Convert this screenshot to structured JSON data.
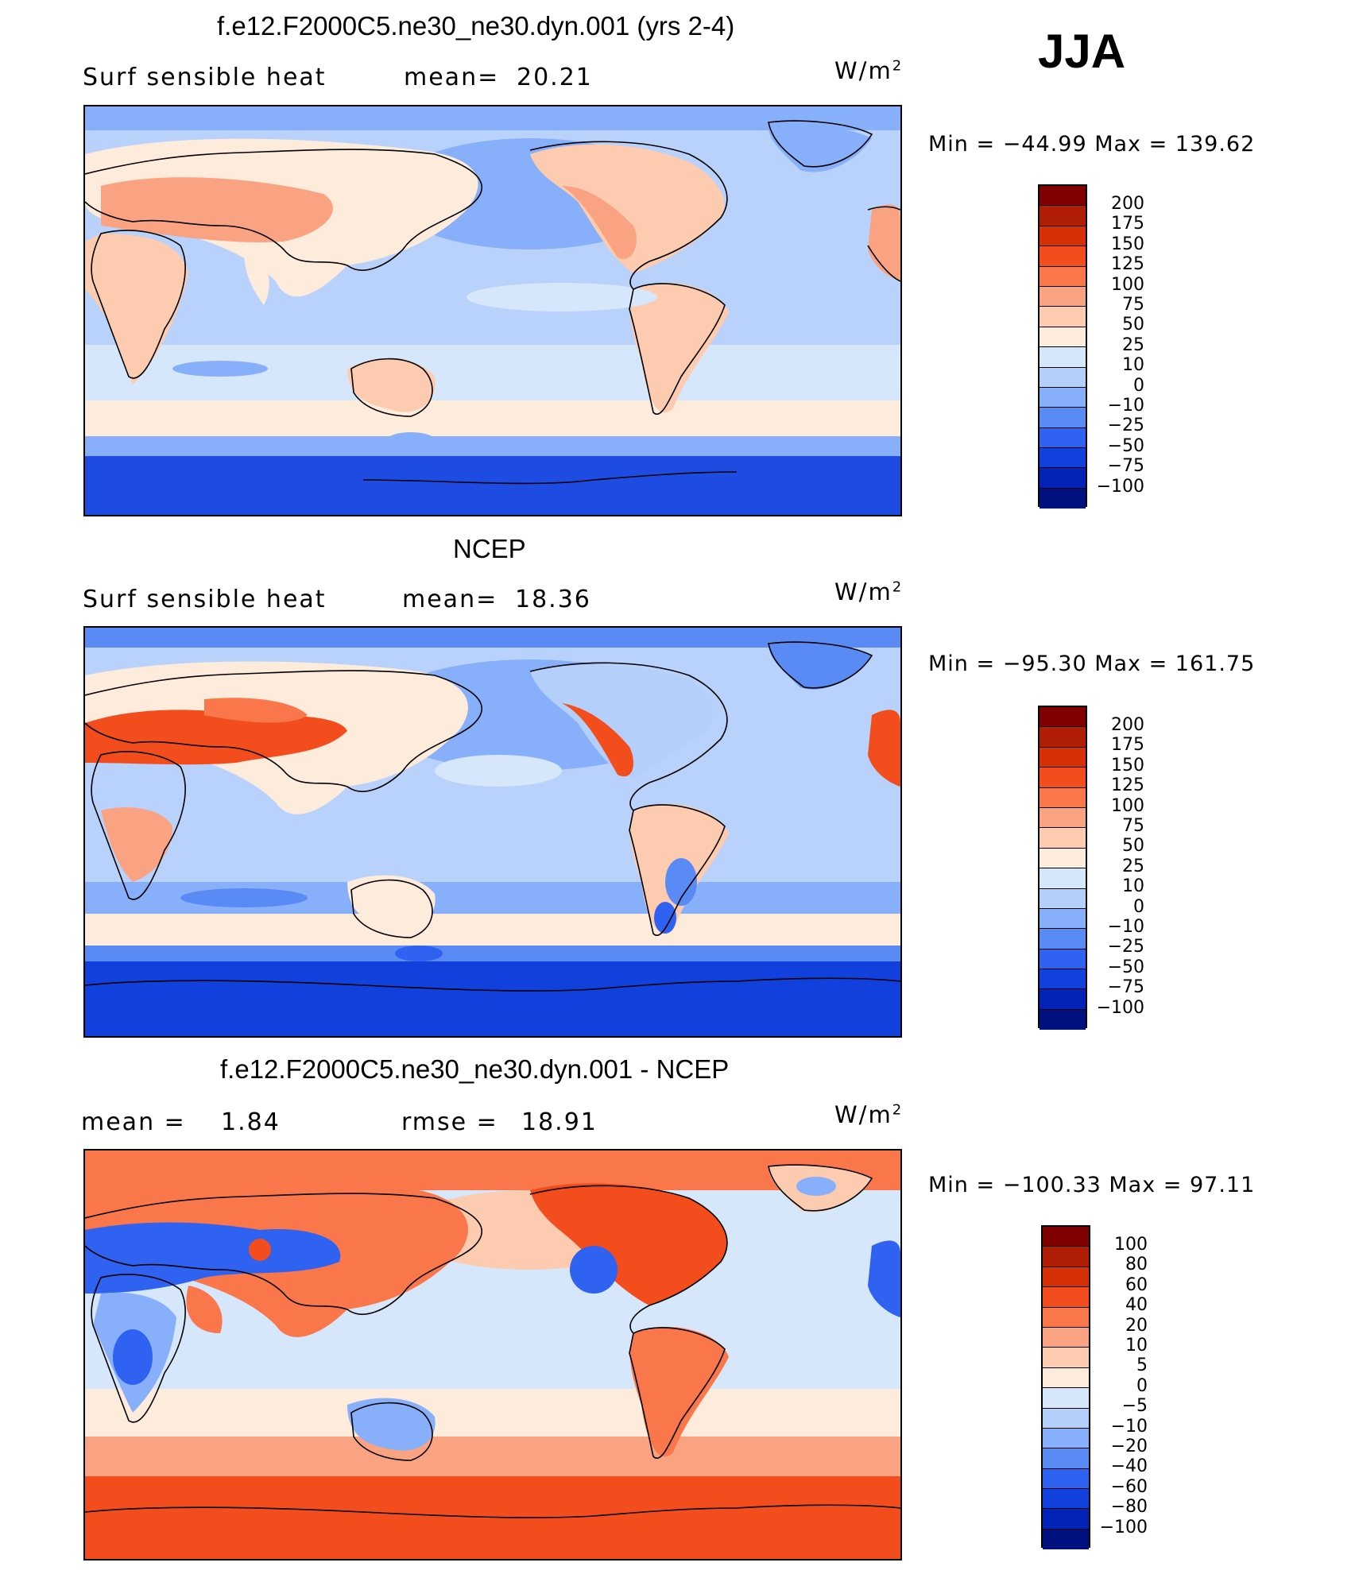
{
  "season": "JJA",
  "panels": [
    {
      "title": "f.e12.F2000C5.ne30_ne30.dyn.001 (yrs 2-4)",
      "left_label": "Surf  sensible  heat",
      "stat_label": "mean=",
      "stat_value": "20.21",
      "stat2_label": "",
      "stat2_value": "",
      "units": "W/m",
      "units_exp": "2",
      "minmax": "Min  =  −44.99  Max  =  139.62",
      "colorbar_labels": [
        "200",
        "175",
        "150",
        "125",
        "100",
        "75",
        "50",
        "25",
        "10",
        "0",
        "−10",
        "−25",
        "−50",
        "−75",
        "−100"
      ]
    },
    {
      "title": "NCEP",
      "left_label": "Surf  sensible  heat",
      "stat_label": "mean=",
      "stat_value": "18.36",
      "stat2_label": "",
      "stat2_value": "",
      "units": "W/m",
      "units_exp": "2",
      "minmax": "Min  =  −95.30  Max  =  161.75",
      "colorbar_labels": [
        "200",
        "175",
        "150",
        "125",
        "100",
        "75",
        "50",
        "25",
        "10",
        "0",
        "−10",
        "−25",
        "−50",
        "−75",
        "−100"
      ]
    },
    {
      "title": "f.e12.F2000C5.ne30_ne30.dyn.001 - NCEP",
      "left_label": "mean  =",
      "stat_label": "",
      "stat_value": "1.84",
      "stat2_label": "rmse  =",
      "stat2_value": "18.91",
      "units": "W/m",
      "units_exp": "2",
      "minmax": "Min  =  −100.33  Max  =    97.11",
      "colorbar_labels": [
        "100",
        "80",
        "60",
        "40",
        "20",
        "10",
        "5",
        "0",
        "−5",
        "−10",
        "−20",
        "−40",
        "−60",
        "−80",
        "−100"
      ]
    }
  ],
  "colors": {
    "colorbar": [
      "#7f0000",
      "#b01e06",
      "#d73008",
      "#f34d1d",
      "#f9774a",
      "#f9a383",
      "#fccbb0",
      "#fdebdc",
      "#d6e7fb",
      "#b3cffa",
      "#87affa",
      "#5a8bf5",
      "#2f62f0",
      "#1140dc",
      "#0323b7",
      "#00107e"
    ],
    "ocean_base": "#b8d2fb",
    "antarctic": "#1e4ce3"
  }
}
